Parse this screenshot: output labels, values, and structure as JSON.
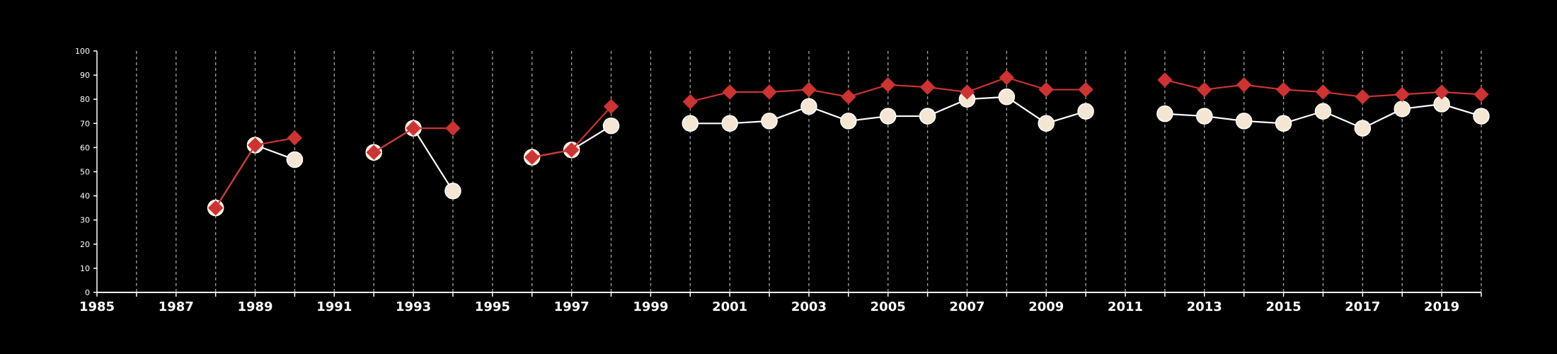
{
  "chart_data": {
    "type": "line",
    "title": "",
    "xlabel": "",
    "ylabel": "",
    "xlim": [
      1985,
      2020
    ],
    "ylim": [
      0,
      100
    ],
    "x_ticks": [
      1985,
      1987,
      1989,
      1991,
      1993,
      1995,
      1997,
      1999,
      2001,
      2003,
      2005,
      2007,
      2009,
      2011,
      2013,
      2015,
      2017,
      2019
    ],
    "y_ticks": [
      0,
      10,
      20,
      30,
      40,
      50,
      60,
      70,
      80,
      90,
      100
    ],
    "grid": "vertical dashed lines at every year",
    "legend": "none",
    "colors": {
      "background": "#000000",
      "axis": "#ffffff",
      "grid": "#9a9a9a",
      "series_1": "#cc3333",
      "series_2": "#ffffff",
      "series_2_marker": "#f5e6d3"
    },
    "series": [
      {
        "marker": "diamond",
        "color": "#cc3333",
        "points": [
          [
            1988,
            35
          ],
          [
            1989,
            61
          ],
          [
            1990,
            64
          ],
          [
            1991,
            null
          ],
          [
            1992,
            58
          ],
          [
            1993,
            68
          ],
          [
            1994,
            68
          ],
          [
            1995,
            null
          ],
          [
            1996,
            56
          ],
          [
            1997,
            59
          ],
          [
            1998,
            77
          ],
          [
            1999,
            null
          ],
          [
            2000,
            79
          ],
          [
            2001,
            83
          ],
          [
            2002,
            83
          ],
          [
            2003,
            84
          ],
          [
            2004,
            81
          ],
          [
            2005,
            86
          ],
          [
            2006,
            85
          ],
          [
            2007,
            83
          ],
          [
            2008,
            89
          ],
          [
            2009,
            84
          ],
          [
            2010,
            84
          ],
          [
            2011,
            null
          ],
          [
            2012,
            88
          ],
          [
            2013,
            84
          ],
          [
            2014,
            86
          ],
          [
            2015,
            84
          ],
          [
            2016,
            83
          ],
          [
            2017,
            81
          ],
          [
            2018,
            82
          ],
          [
            2019,
            83
          ],
          [
            2020,
            82
          ]
        ]
      },
      {
        "marker": "circle",
        "color": "#ffffff",
        "points": [
          [
            1988,
            35
          ],
          [
            1989,
            61
          ],
          [
            1990,
            55
          ],
          [
            1991,
            null
          ],
          [
            1992,
            58
          ],
          [
            1993,
            68
          ],
          [
            1994,
            42
          ],
          [
            1995,
            null
          ],
          [
            1996,
            56
          ],
          [
            1997,
            59
          ],
          [
            1998,
            69
          ],
          [
            1999,
            null
          ],
          [
            2000,
            70
          ],
          [
            2001,
            70
          ],
          [
            2002,
            71
          ],
          [
            2003,
            77
          ],
          [
            2004,
            71
          ],
          [
            2005,
            73
          ],
          [
            2006,
            73
          ],
          [
            2007,
            80
          ],
          [
            2008,
            81
          ],
          [
            2009,
            70
          ],
          [
            2010,
            75
          ],
          [
            2011,
            null
          ],
          [
            2012,
            74
          ],
          [
            2013,
            73
          ],
          [
            2014,
            71
          ],
          [
            2015,
            70
          ],
          [
            2016,
            75
          ],
          [
            2017,
            68
          ],
          [
            2018,
            76
          ],
          [
            2019,
            78
          ],
          [
            2020,
            73
          ]
        ]
      }
    ]
  }
}
